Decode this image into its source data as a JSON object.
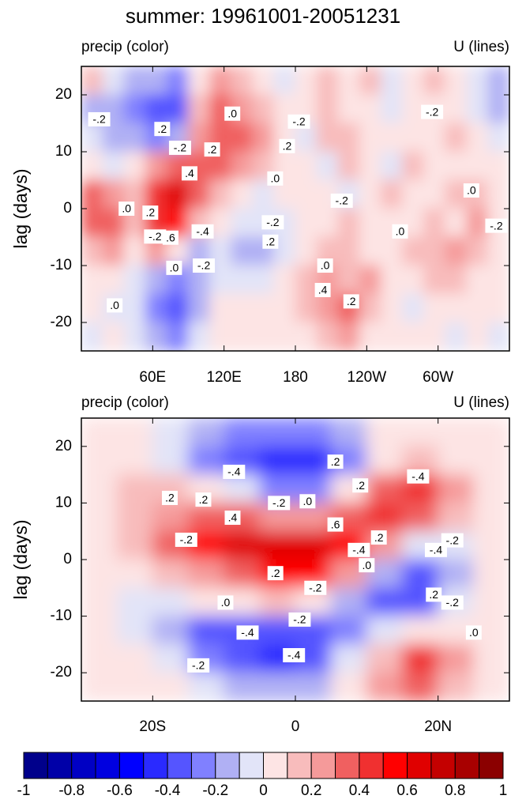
{
  "title": "summer: 19961001-20051231",
  "chart_data": [
    {
      "type": "heatmap",
      "left_label": "precip (color)",
      "right_label": "U (lines)",
      "ylabel": "lag (days)",
      "xlim": [
        0,
        360
      ],
      "xticks": [
        {
          "value": 60,
          "label": "60E"
        },
        {
          "value": 120,
          "label": "120E"
        },
        180,
        {
          "value": 240,
          "label": "120W"
        },
        {
          "value": 300,
          "label": "60W"
        }
      ],
      "ylim": [
        -25,
        25
      ],
      "yticks": [
        20,
        10,
        0,
        -10,
        -20
      ],
      "x": [
        9,
        27,
        45,
        63,
        81,
        99,
        117,
        135,
        153,
        171,
        189,
        207,
        225,
        243,
        261,
        279,
        297,
        315,
        333,
        351
      ],
      "y": [
        22.5,
        17.5,
        12.5,
        7.5,
        2.5,
        -2.5,
        -7.5,
        -12.5,
        -17.5,
        -22.5
      ],
      "z": [
        [
          0.1,
          -0.1,
          -0.2,
          -0.2,
          -0.3,
          0,
          0.2,
          0.1,
          0,
          -0.1,
          0,
          0.1,
          0,
          0.1,
          -0.1,
          0,
          0.1,
          0,
          -0.1,
          -0.2
        ],
        [
          -0.2,
          -0.2,
          -0.3,
          -0.4,
          -0.4,
          0.1,
          0.3,
          0.2,
          0.1,
          0,
          0,
          0.1,
          0,
          0,
          -0.1,
          0,
          0,
          0,
          -0.1,
          -0.2
        ],
        [
          -0.1,
          -0.2,
          -0.2,
          -0.3,
          -0.2,
          0.2,
          0.3,
          0.3,
          0.2,
          0,
          -0.1,
          0.1,
          0.1,
          0,
          0,
          0,
          0,
          0.1,
          0,
          -0.1
        ],
        [
          0,
          -0.1,
          0,
          0.2,
          0.3,
          0.3,
          0.3,
          0.2,
          0.1,
          0,
          0,
          -0.1,
          0.1,
          0,
          -0.1,
          0.1,
          0,
          0,
          0,
          0
        ],
        [
          0.3,
          0.2,
          0.1,
          0.4,
          0.6,
          0.3,
          0.1,
          0,
          -0.1,
          0,
          0,
          0,
          -0.1,
          0,
          0.1,
          0,
          0,
          0.1,
          0.1,
          0
        ],
        [
          0.3,
          0.3,
          0.1,
          0.4,
          0.5,
          0.1,
          0,
          -0.1,
          -0.1,
          -0.1,
          0,
          0,
          0.1,
          0,
          0,
          0,
          0.1,
          0,
          0.2,
          0
        ],
        [
          0.1,
          0.2,
          0,
          0.2,
          0,
          -0.2,
          -0.1,
          -0.2,
          -0.2,
          -0.1,
          0,
          0.1,
          0.1,
          0,
          0,
          0.1,
          0.1,
          0.2,
          0.1,
          0
        ],
        [
          0,
          0,
          -0.1,
          -0.2,
          -0.3,
          -0.2,
          -0.1,
          -0.1,
          -0.1,
          0,
          0.1,
          0.2,
          0.1,
          0.2,
          0,
          0,
          0.1,
          0.1,
          0,
          0
        ],
        [
          0,
          -0.1,
          -0.1,
          -0.3,
          -0.4,
          -0.2,
          0,
          0,
          0,
          0,
          0.1,
          0.2,
          0.3,
          0.1,
          0,
          -0.1,
          0,
          0,
          0,
          0
        ],
        [
          -0.1,
          0,
          -0.1,
          -0.2,
          -0.3,
          -0.1,
          0,
          0,
          0,
          0,
          0,
          0.1,
          0.2,
          0,
          0,
          0,
          0,
          -0.1,
          0,
          -0.1
        ]
      ],
      "contour_labels": [
        {
          "label": "-.2",
          "x": 15,
          "y": 15.7
        },
        {
          "label": ".2",
          "x": 68,
          "y": 14
        },
        {
          "label": "-.2",
          "x": 83,
          "y": 10.7
        },
        {
          "label": ".2",
          "x": 110,
          "y": 10.4
        },
        {
          "label": ".4",
          "x": 91,
          "y": 6.2
        },
        {
          "label": ".0",
          "x": 127,
          "y": 16.7
        },
        {
          "label": "-.2",
          "x": 183,
          "y": 15.3
        },
        {
          "label": ".2",
          "x": 173,
          "y": 11
        },
        {
          "label": ".0",
          "x": 163,
          "y": 5.3
        },
        {
          "label": "-.2",
          "x": 219,
          "y": 1.4
        },
        {
          "label": "-.2",
          "x": 295,
          "y": 17
        },
        {
          "label": ".0",
          "x": 328,
          "y": 3.2
        },
        {
          "label": "-.2",
          "x": 349,
          "y": -3
        },
        {
          "label": ".0",
          "x": 38,
          "y": 0
        },
        {
          "label": ".2",
          "x": 58,
          "y": -0.7
        },
        {
          "label": "-.2",
          "x": 62,
          "y": -4.9
        },
        {
          "label": ".6",
          "x": 75,
          "y": -5.1
        },
        {
          "label": "-.4",
          "x": 102,
          "y": -4
        },
        {
          "label": "-.2",
          "x": 161,
          "y": -2.4
        },
        {
          "label": ".2",
          "x": 159,
          "y": -5.8
        },
        {
          "label": ".0",
          "x": 268,
          "y": -4
        },
        {
          "label": ".0",
          "x": 78,
          "y": -10.4
        },
        {
          "label": "-.2",
          "x": 103,
          "y": -10
        },
        {
          "label": ".0",
          "x": 205,
          "y": -10
        },
        {
          "label": ".4",
          "x": 203,
          "y": -14.3
        },
        {
          "label": ".2",
          "x": 227,
          "y": -16.3
        },
        {
          "label": ".0",
          "x": 28,
          "y": -17
        }
      ]
    },
    {
      "type": "heatmap",
      "left_label": "precip (color)",
      "right_label": "U (lines)",
      "ylabel": "lag (days)",
      "xlim": [
        -30,
        30
      ],
      "xticks": [
        {
          "value": -20,
          "label": "20S"
        },
        0,
        {
          "value": 20,
          "label": "20N"
        }
      ],
      "ylim": [
        -25,
        25
      ],
      "yticks": [
        20,
        10,
        0,
        -10,
        -20
      ],
      "x": [
        -27.5,
        -22.5,
        -17.5,
        -12.5,
        -7.5,
        -2.5,
        2.5,
        7.5,
        12.5,
        17.5,
        22.5,
        27.5
      ],
      "y": [
        22.5,
        17.5,
        12.5,
        7.5,
        2.5,
        -2.5,
        -7.5,
        -12.5,
        -17.5,
        -22.5
      ],
      "z": [
        [
          0,
          0,
          -0.1,
          -0.2,
          -0.3,
          -0.3,
          -0.3,
          -0.2,
          0,
          0,
          0,
          0
        ],
        [
          0,
          0,
          -0.1,
          -0.3,
          -0.4,
          -0.5,
          -0.5,
          -0.3,
          0,
          0.1,
          0,
          0
        ],
        [
          0,
          0.1,
          0.1,
          0,
          -0.1,
          -0.3,
          -0.3,
          0,
          0.3,
          0.4,
          0.2,
          0
        ],
        [
          0,
          0.1,
          0.2,
          0.3,
          0.3,
          0.2,
          0.2,
          0.3,
          0.4,
          0.3,
          0.1,
          0
        ],
        [
          0,
          0.1,
          0.3,
          0.5,
          0.6,
          0.6,
          0.6,
          0.5,
          0.2,
          -0.1,
          -0.1,
          0
        ],
        [
          0,
          0,
          0.1,
          0.2,
          0.3,
          0.5,
          0.5,
          0.2,
          -0.2,
          -0.4,
          -0.2,
          0
        ],
        [
          0,
          -0.1,
          -0.1,
          0,
          0,
          0.1,
          0,
          -0.2,
          -0.4,
          -0.4,
          -0.1,
          0
        ],
        [
          0,
          -0.1,
          -0.2,
          -0.4,
          -0.4,
          -0.4,
          -0.4,
          -0.3,
          -0.1,
          0,
          0,
          0
        ],
        [
          0,
          0,
          -0.1,
          -0.3,
          -0.4,
          -0.5,
          -0.4,
          -0.1,
          0.1,
          0.4,
          0.2,
          0
        ],
        [
          0,
          0,
          0,
          -0.1,
          -0.2,
          -0.2,
          -0.2,
          0,
          0.2,
          0.3,
          0.1,
          0
        ]
      ],
      "contour_labels": [
        {
          "label": "-.4",
          "x": -8.6,
          "y": 15.5
        },
        {
          "label": ".2",
          "x": 5.6,
          "y": 17.3
        },
        {
          "label": ".2",
          "x": -17.6,
          "y": 10.9
        },
        {
          "label": ".2",
          "x": -12.9,
          "y": 10.6
        },
        {
          "label": "-.2",
          "x": -2.3,
          "y": 10
        },
        {
          "label": ".0",
          "x": 1.7,
          "y": 10.3
        },
        {
          "label": ".2",
          "x": 9.1,
          "y": 13.1
        },
        {
          "label": "-.4",
          "x": 17.2,
          "y": 14.7
        },
        {
          "label": ".4",
          "x": -8.8,
          "y": 7.4
        },
        {
          "label": "-.2",
          "x": -15.3,
          "y": 3.5
        },
        {
          "label": ".6",
          "x": 5.6,
          "y": 6.2
        },
        {
          "label": ".2",
          "x": 11.7,
          "y": 3.9
        },
        {
          "label": "-.4",
          "x": 8.9,
          "y": 1.7
        },
        {
          "label": ".0",
          "x": 10,
          "y": -1
        },
        {
          "label": "-.2",
          "x": 22,
          "y": 3.4
        },
        {
          "label": "-.4",
          "x": 19.7,
          "y": 1.7
        },
        {
          "label": ".2",
          "x": -2.8,
          "y": -2.4
        },
        {
          "label": "-.2",
          "x": 2.8,
          "y": -5
        },
        {
          "label": ".0",
          "x": -9.8,
          "y": -7.6
        },
        {
          "label": ".2",
          "x": 19.4,
          "y": -6.2
        },
        {
          "label": "-.2",
          "x": 22,
          "y": -7.6
        },
        {
          "label": "-.2",
          "x": 0.6,
          "y": -10.6
        },
        {
          "label": "-.4",
          "x": -6.7,
          "y": -12.9
        },
        {
          "label": ".0",
          "x": 25,
          "y": -12.9
        },
        {
          "label": "-.4",
          "x": -0.2,
          "y": -16.9
        },
        {
          "label": "-.2",
          "x": -13.6,
          "y": -18.7
        }
      ]
    },
    {
      "type": "colorbar",
      "levels": [
        -1,
        -0.9,
        -0.8,
        -0.7,
        -0.6,
        -0.5,
        -0.4,
        -0.3,
        -0.2,
        -0.1,
        0,
        0.1,
        0.2,
        0.3,
        0.4,
        0.5,
        0.6,
        0.7,
        0.8,
        0.9,
        1
      ],
      "colors": [
        "#00008b",
        "#0000a8",
        "#0000c4",
        "#0000e0",
        "#0000ff",
        "#2a2aff",
        "#5555ff",
        "#8080ff",
        "#b0b0f4",
        "#e2e4f8",
        "#fde4e4",
        "#f8bcbc",
        "#f59a9a",
        "#f06060",
        "#f03030",
        "#ff0000",
        "#e00000",
        "#c40000",
        "#a80000",
        "#8b0000"
      ],
      "ticks": [
        -1,
        -0.8,
        -0.6,
        -0.4,
        -0.2,
        0,
        0.2,
        0.4,
        0.6,
        0.8,
        1
      ]
    }
  ]
}
